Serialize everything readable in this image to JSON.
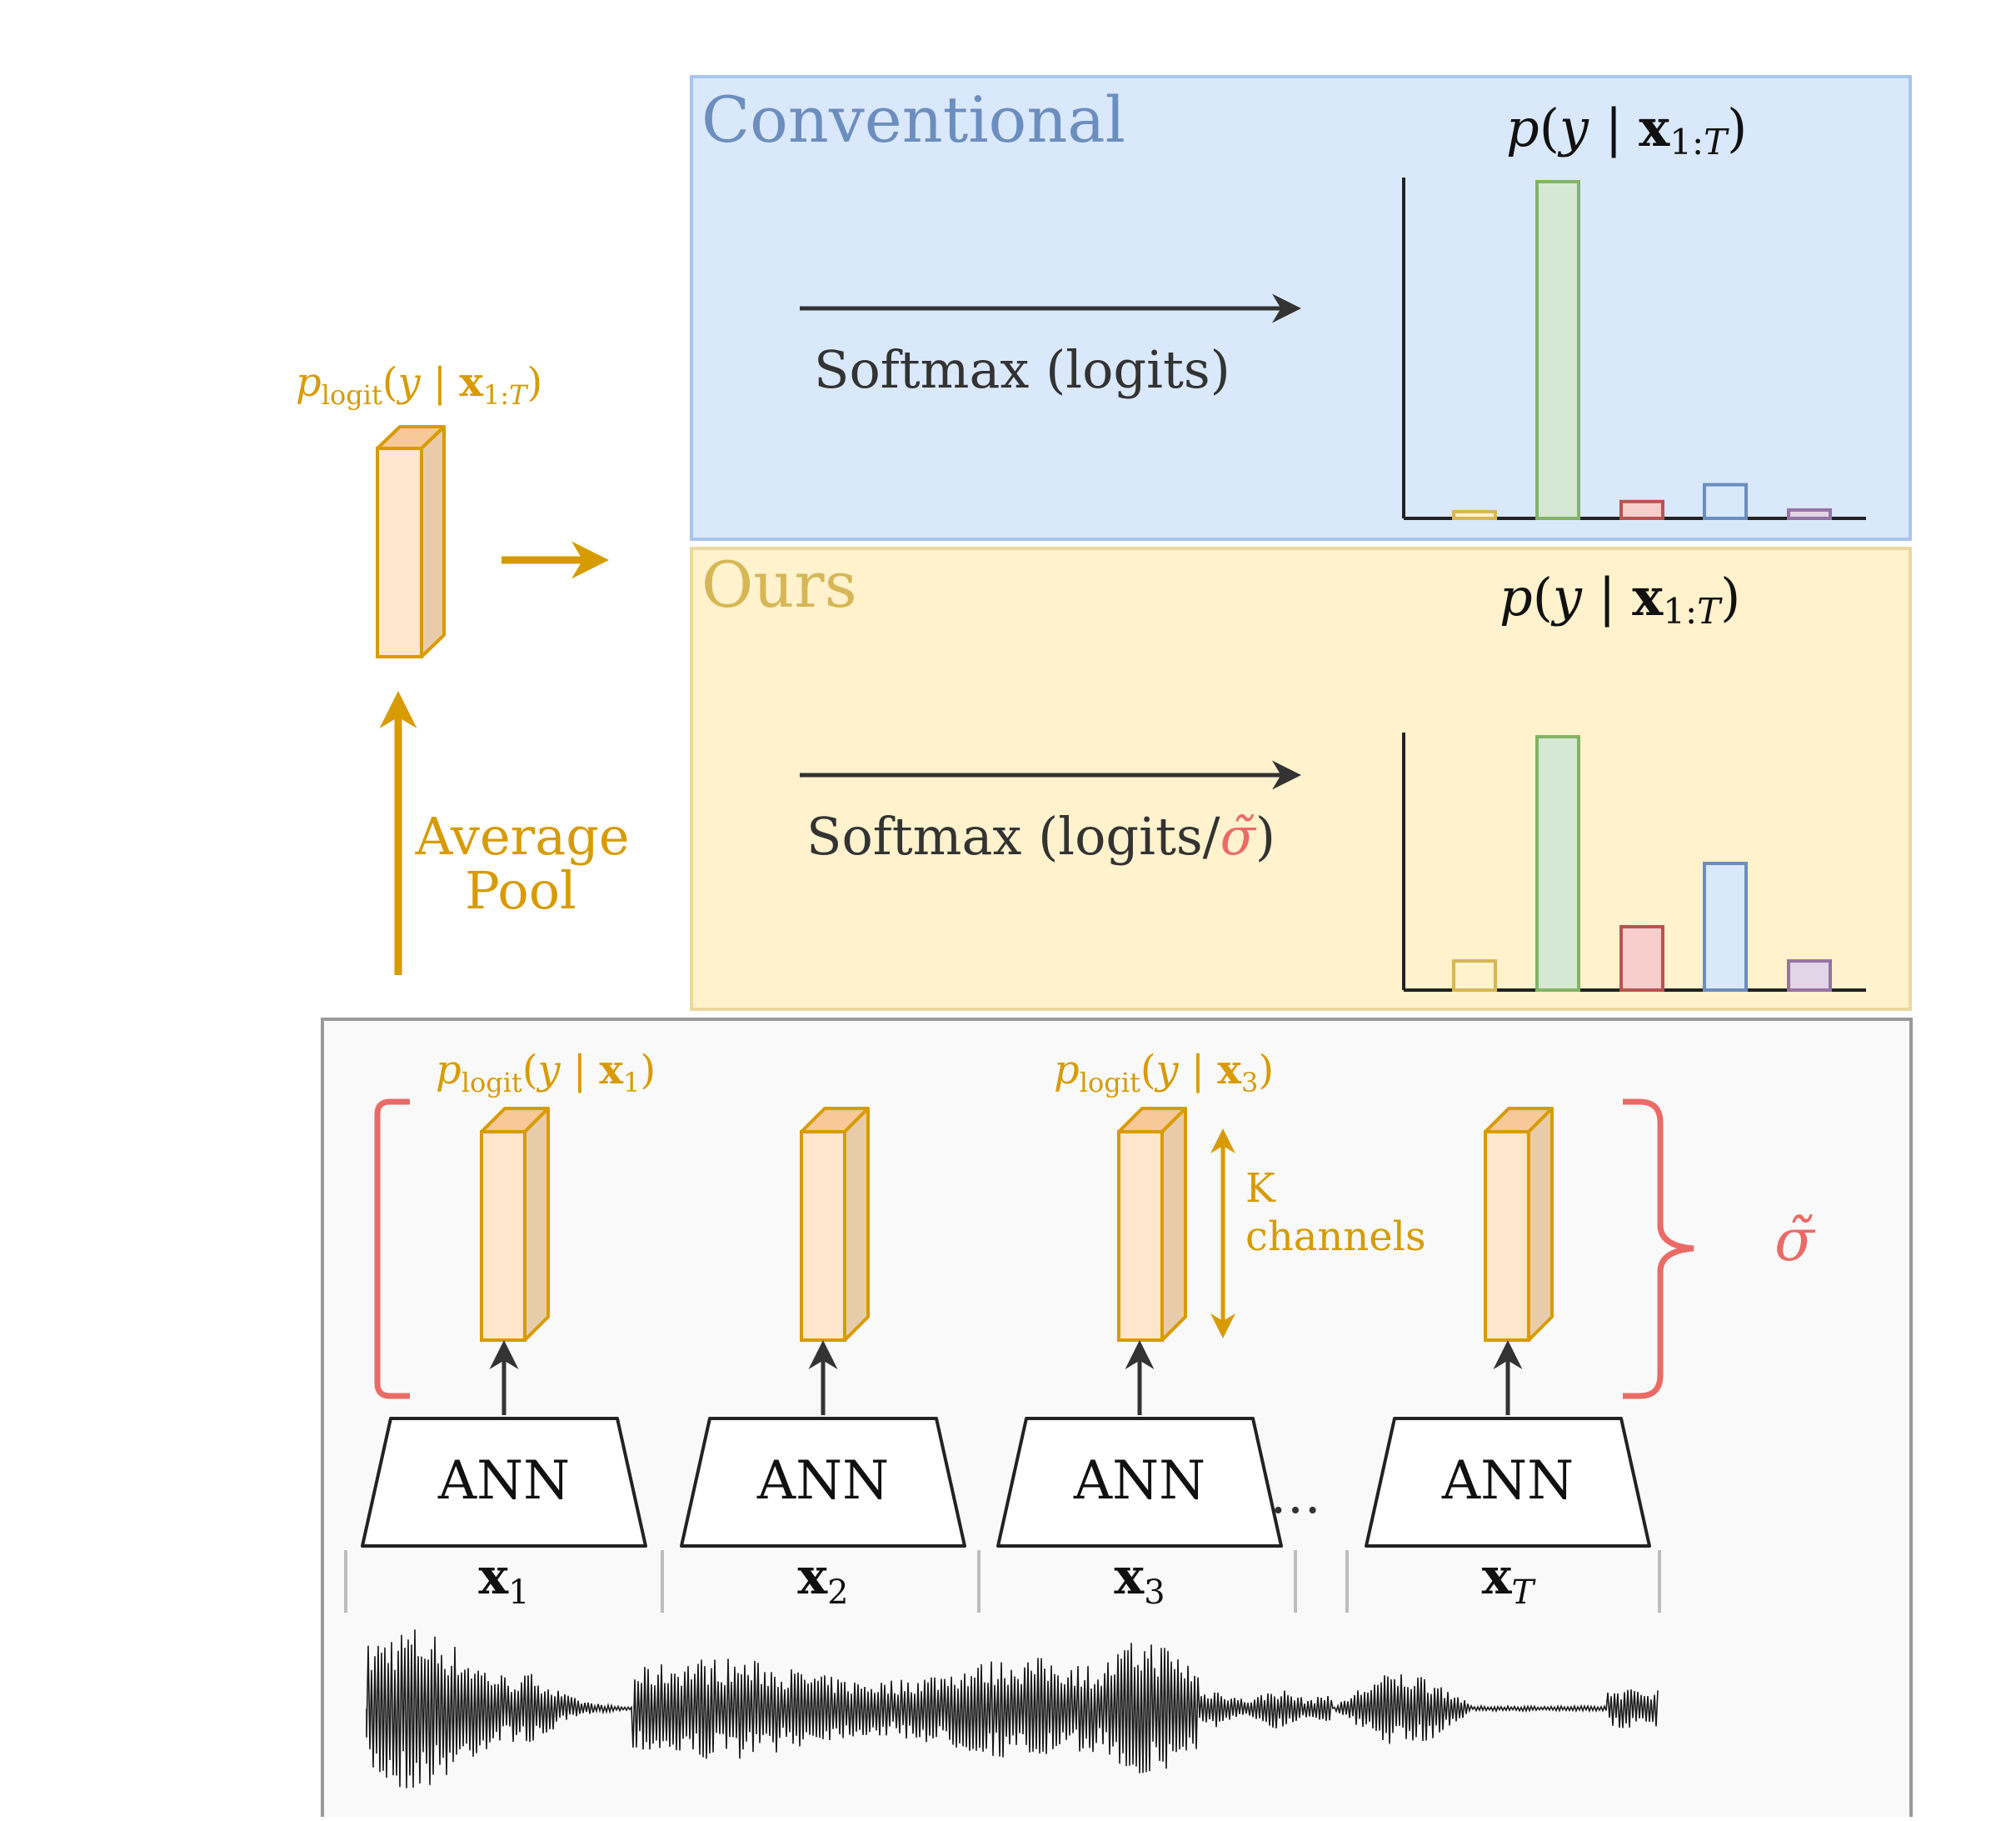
{
  "colors": {
    "gold": "#d79b00",
    "box_fill": "#ffe6cc",
    "box_side": "#e8ccaa",
    "box_top": "#f7c898",
    "red": "#ea6b66",
    "dark": "#333333",
    "conv_bg": "#dae8fc",
    "conv_border": "#a9c4eb",
    "conv_title": "#6c8ebf",
    "ours_bg": "#fff2cc",
    "ours_border": "#ead8a0",
    "ours_title": "#d6b656",
    "bottom_bg": "#f5f5f5",
    "bottom_border": "#999999",
    "bar_yellow": [
      "#fff2cc",
      "#d6b656"
    ],
    "bar_green": [
      "#d5e8d4",
      "#82b366"
    ],
    "bar_red": [
      "#f8cecc",
      "#b85450"
    ],
    "bar_blue": [
      "#dae8fc",
      "#6c8ebf"
    ],
    "bar_purple": [
      "#e1d5e7",
      "#9673a6"
    ]
  },
  "icons": {
    "flow_arrow": "arrow-right-icon",
    "pool_arrow": "arrow-up-icon",
    "channels_arrow": "double-arrow-icon",
    "waveform": "audio-waveform-icon"
  },
  "conventional": {
    "title": "Conventional",
    "prob_label": {
      "p": "p",
      "open": "(",
      "y": "y",
      "bar": " | ",
      "x": "x",
      "sub": "1:",
      "subT": "T",
      "close": ")"
    },
    "transform_label": "Softmax (logits)",
    "chart_data": {
      "type": "bar",
      "categories": [
        "",
        "",
        "",
        "",
        ""
      ],
      "values": [
        0.02,
        1.0,
        0.05,
        0.1,
        0.025
      ],
      "ylim": [
        0,
        1
      ]
    }
  },
  "ours": {
    "title": "Ours",
    "prob_label": {
      "p": "p",
      "open": "(",
      "y": "y",
      "bar": " | ",
      "x": "x",
      "sub": "1:",
      "subT": "T",
      "close": ")"
    },
    "transform_label_prefix": "Softmax (logits/",
    "transform_sigma": "σ̃",
    "transform_label_suffix": ")",
    "chart_data": {
      "type": "bar",
      "categories": [
        "",
        "",
        "",
        "",
        ""
      ],
      "values": [
        0.115,
        1.0,
        0.25,
        0.5,
        0.115
      ],
      "ylim": [
        0,
        1
      ]
    }
  },
  "pooled": {
    "label_p": "p",
    "label_sub": "logit",
    "label_rest_open": "(",
    "label_y": "y",
    "label_bar": " | ",
    "label_x": "x",
    "label_xsub": "1:",
    "label_xsubT": "T",
    "label_close": ")",
    "pool_line1": "Average",
    "pool_line2": "Pool"
  },
  "frames": {
    "label1": {
      "p": "p",
      "sub": "logit",
      "open": "(",
      "y": "y",
      "bar": " | ",
      "x": "x",
      "xsub": "1",
      "close": ")"
    },
    "label3": {
      "p": "p",
      "sub": "logit",
      "open": "(",
      "y": "y",
      "bar": " | ",
      "x": "x",
      "xsub": "3",
      "close": ")"
    },
    "channels_line1": "K",
    "channels_line2": "channels",
    "sigma": "σ̃",
    "ann": [
      "ANN",
      "ANN",
      "ANN",
      "ANN"
    ],
    "ellipsis": "…",
    "inputs": [
      {
        "x": "x",
        "sub": "1"
      },
      {
        "x": "x",
        "sub": "2"
      },
      {
        "x": "x",
        "sub": "3"
      },
      {
        "x": "x",
        "sub": "T"
      }
    ]
  }
}
